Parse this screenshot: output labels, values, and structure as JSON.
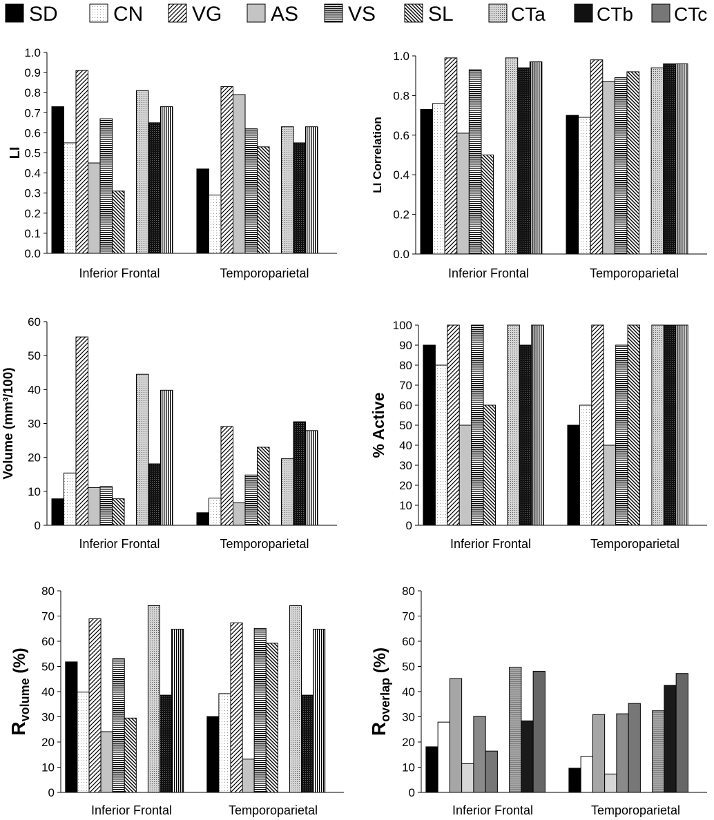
{
  "legend": {
    "items": [
      {
        "label": "SD",
        "pattern": "solid-black"
      },
      {
        "label": "CN",
        "pattern": "dots-white"
      },
      {
        "label": "VG",
        "pattern": "diag-right"
      },
      {
        "label": "AS",
        "pattern": "light-gray"
      },
      {
        "label": "VS",
        "pattern": "horiz-lines"
      },
      {
        "label": "SL",
        "pattern": "diag-left"
      },
      {
        "label": "CTa",
        "pattern": "dense-dots"
      },
      {
        "label": "CTb",
        "pattern": "dark-dots"
      },
      {
        "label": "CTc",
        "pattern": "vert-lines"
      }
    ]
  },
  "chart_data": [
    {
      "type": "bar",
      "panel": "LI",
      "ylabel": "LI",
      "ylim": [
        0,
        1.0
      ],
      "yticks": [
        "0.0",
        "0.1",
        "0.2",
        "0.3",
        "0.4",
        "0.5",
        "0.6",
        "0.7",
        "0.8",
        "0.9",
        "1.0"
      ],
      "categories": [
        "Inferior Frontal",
        "Temporoparietal"
      ],
      "series": [
        {
          "name": "SD",
          "values": [
            0.73,
            0.42
          ]
        },
        {
          "name": "CN",
          "values": [
            0.55,
            0.29
          ]
        },
        {
          "name": "VG",
          "values": [
            0.91,
            0.83
          ]
        },
        {
          "name": "AS",
          "values": [
            0.45,
            0.79
          ]
        },
        {
          "name": "VS",
          "values": [
            0.67,
            0.62
          ]
        },
        {
          "name": "SL",
          "values": [
            0.31,
            0.53
          ]
        },
        {
          "name": "CTa",
          "values": [
            0.81,
            0.63
          ]
        },
        {
          "name": "CTb",
          "values": [
            0.65,
            0.55
          ]
        },
        {
          "name": "CTc",
          "values": [
            0.73,
            0.63
          ]
        }
      ]
    },
    {
      "type": "bar",
      "panel": "LI Correlation",
      "ylabel": "LI Correlation",
      "ylim": [
        0,
        1.0
      ],
      "yticks": [
        "0.0",
        "0.2",
        "0.4",
        "0.6",
        "0.8",
        "1.0"
      ],
      "categories": [
        "Inferior Frontal",
        "Temporoparietal"
      ],
      "series": [
        {
          "name": "SD",
          "values": [
            0.73,
            0.7
          ]
        },
        {
          "name": "CN",
          "values": [
            0.76,
            0.69
          ]
        },
        {
          "name": "VG",
          "values": [
            0.99,
            0.98
          ]
        },
        {
          "name": "AS",
          "values": [
            0.61,
            0.87
          ]
        },
        {
          "name": "VS",
          "values": [
            0.93,
            0.89
          ]
        },
        {
          "name": "SL",
          "values": [
            0.5,
            0.92
          ]
        },
        {
          "name": "CTa",
          "values": [
            0.99,
            0.94
          ]
        },
        {
          "name": "CTb",
          "values": [
            0.94,
            0.96
          ]
        },
        {
          "name": "CTc",
          "values": [
            0.97,
            0.96
          ]
        }
      ]
    },
    {
      "type": "bar",
      "panel": "Volume",
      "ylabel": "Volume (mm³/100)",
      "ylim": [
        0,
        60
      ],
      "yticks": [
        "0",
        "10",
        "20",
        "30",
        "40",
        "50",
        "60"
      ],
      "categories": [
        "Inferior Frontal",
        "Temporoparietal"
      ],
      "series": [
        {
          "name": "SD",
          "values": [
            7.8,
            3.7
          ]
        },
        {
          "name": "CN",
          "values": [
            15.4,
            8.0
          ]
        },
        {
          "name": "VG",
          "values": [
            55.5,
            29.1
          ]
        },
        {
          "name": "AS",
          "values": [
            11.1,
            6.6
          ]
        },
        {
          "name": "VS",
          "values": [
            11.4,
            14.8
          ]
        },
        {
          "name": "SL",
          "values": [
            7.8,
            23.0
          ]
        },
        {
          "name": "CTa",
          "values": [
            44.5,
            19.6
          ]
        },
        {
          "name": "CTb",
          "values": [
            18.1,
            30.5
          ]
        },
        {
          "name": "CTc",
          "values": [
            39.8,
            27.9
          ]
        }
      ]
    },
    {
      "type": "bar",
      "panel": "% Active",
      "ylabel": "% Active",
      "ylim": [
        0,
        100
      ],
      "yticks": [
        "0",
        "10",
        "20",
        "30",
        "40",
        "50",
        "60",
        "70",
        "80",
        "90",
        "100"
      ],
      "categories": [
        "Inferior Frontal",
        "Temporoparietal"
      ],
      "series": [
        {
          "name": "SD",
          "values": [
            90,
            50
          ]
        },
        {
          "name": "CN",
          "values": [
            80,
            60
          ]
        },
        {
          "name": "VG",
          "values": [
            100,
            100
          ]
        },
        {
          "name": "AS",
          "values": [
            50,
            40
          ]
        },
        {
          "name": "VS",
          "values": [
            100,
            90
          ]
        },
        {
          "name": "SL",
          "values": [
            60,
            100
          ]
        },
        {
          "name": "CTa",
          "values": [
            100,
            100
          ]
        },
        {
          "name": "CTb",
          "values": [
            90,
            100
          ]
        },
        {
          "name": "CTc",
          "values": [
            100,
            100
          ]
        }
      ]
    },
    {
      "type": "bar",
      "panel": "R volume",
      "ylabel": "R",
      "ylabel_sub": "volume",
      "ylabel_suffix": " (%)",
      "ylim": [
        0,
        80
      ],
      "yticks": [
        "0",
        "10",
        "20",
        "30",
        "40",
        "50",
        "60",
        "70",
        "80"
      ],
      "categories": [
        "Inferior Frontal",
        "Temporoparietal"
      ],
      "series": [
        {
          "name": "SD",
          "values": [
            51.8,
            30.1
          ]
        },
        {
          "name": "CN",
          "values": [
            39.8,
            39.2
          ]
        },
        {
          "name": "VG",
          "values": [
            68.9,
            67.3
          ]
        },
        {
          "name": "AS",
          "values": [
            24.1,
            13.2
          ]
        },
        {
          "name": "VS",
          "values": [
            53.1,
            65.1
          ]
        },
        {
          "name": "SL",
          "values": [
            29.5,
            59.2
          ]
        },
        {
          "name": "CTa",
          "values": [
            74.1,
            74.1
          ]
        },
        {
          "name": "CTb",
          "values": [
            38.6,
            38.6
          ]
        },
        {
          "name": "CTc",
          "values": [
            64.8,
            64.8
          ]
        }
      ]
    },
    {
      "type": "bar",
      "panel": "R overlap",
      "ylabel": "R",
      "ylabel_sub": "overlap",
      "ylabel_suffix": " (%)",
      "ylim": [
        0,
        80
      ],
      "yticks": [
        "0",
        "10",
        "20",
        "30",
        "40",
        "50",
        "60",
        "70",
        "80"
      ],
      "categories": [
        "Inferior Frontal",
        "Temporoparietal"
      ],
      "series": [
        {
          "name": "SD",
          "values": [
            18.1,
            9.6
          ]
        },
        {
          "name": "CN",
          "values": [
            27.9,
            14.3
          ]
        },
        {
          "name": "VG",
          "values": [
            45.2,
            30.9
          ]
        },
        {
          "name": "AS",
          "values": [
            11.4,
            7.3
          ]
        },
        {
          "name": "VS",
          "values": [
            30.2,
            31.2
          ]
        },
        {
          "name": "SL",
          "values": [
            16.4,
            35.3
          ]
        },
        {
          "name": "CTa",
          "values": [
            49.7,
            32.4
          ]
        },
        {
          "name": "CTb",
          "values": [
            28.4,
            42.5
          ]
        },
        {
          "name": "CTc",
          "values": [
            48.1,
            47.2
          ]
        }
      ]
    }
  ]
}
